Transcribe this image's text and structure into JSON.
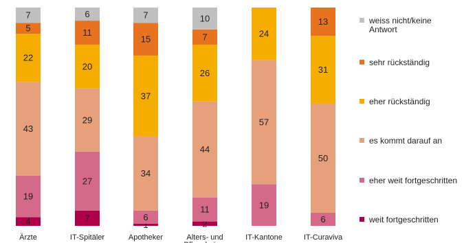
{
  "chart_data": {
    "type": "bar",
    "stacked": true,
    "orientation": "vertical",
    "percent_stacked": true,
    "categories": [
      "Ärzte",
      "IT-Spitäler",
      "Apotheker",
      "Alters- und Pflegeheime",
      "IT-Kantone",
      "IT-Curaviva"
    ],
    "series": [
      {
        "name": "weit fortgeschritten",
        "color": "#b0004a",
        "values": [
          4,
          7,
          1,
          2,
          0,
          0
        ]
      },
      {
        "name": "eher weit fortgeschritten",
        "color": "#d4698a",
        "values": [
          19,
          27,
          6,
          11,
          19,
          6
        ]
      },
      {
        "name": "es kommt darauf an",
        "color": "#e6a07c",
        "values": [
          43,
          29,
          34,
          44,
          57,
          50
        ]
      },
      {
        "name": "eher rückständig",
        "color": "#f5ad00",
        "values": [
          22,
          20,
          37,
          26,
          24,
          31
        ]
      },
      {
        "name": "sehr rückständig",
        "color": "#e8731f",
        "values": [
          5,
          11,
          15,
          7,
          0,
          13
        ]
      },
      {
        "name": "weiss nicht/keine Antwort",
        "color": "#c0c0c0",
        "values": [
          7,
          6,
          7,
          10,
          0,
          0
        ]
      }
    ],
    "ylim": [
      0,
      100
    ],
    "grid": false,
    "legend_position": "right"
  }
}
